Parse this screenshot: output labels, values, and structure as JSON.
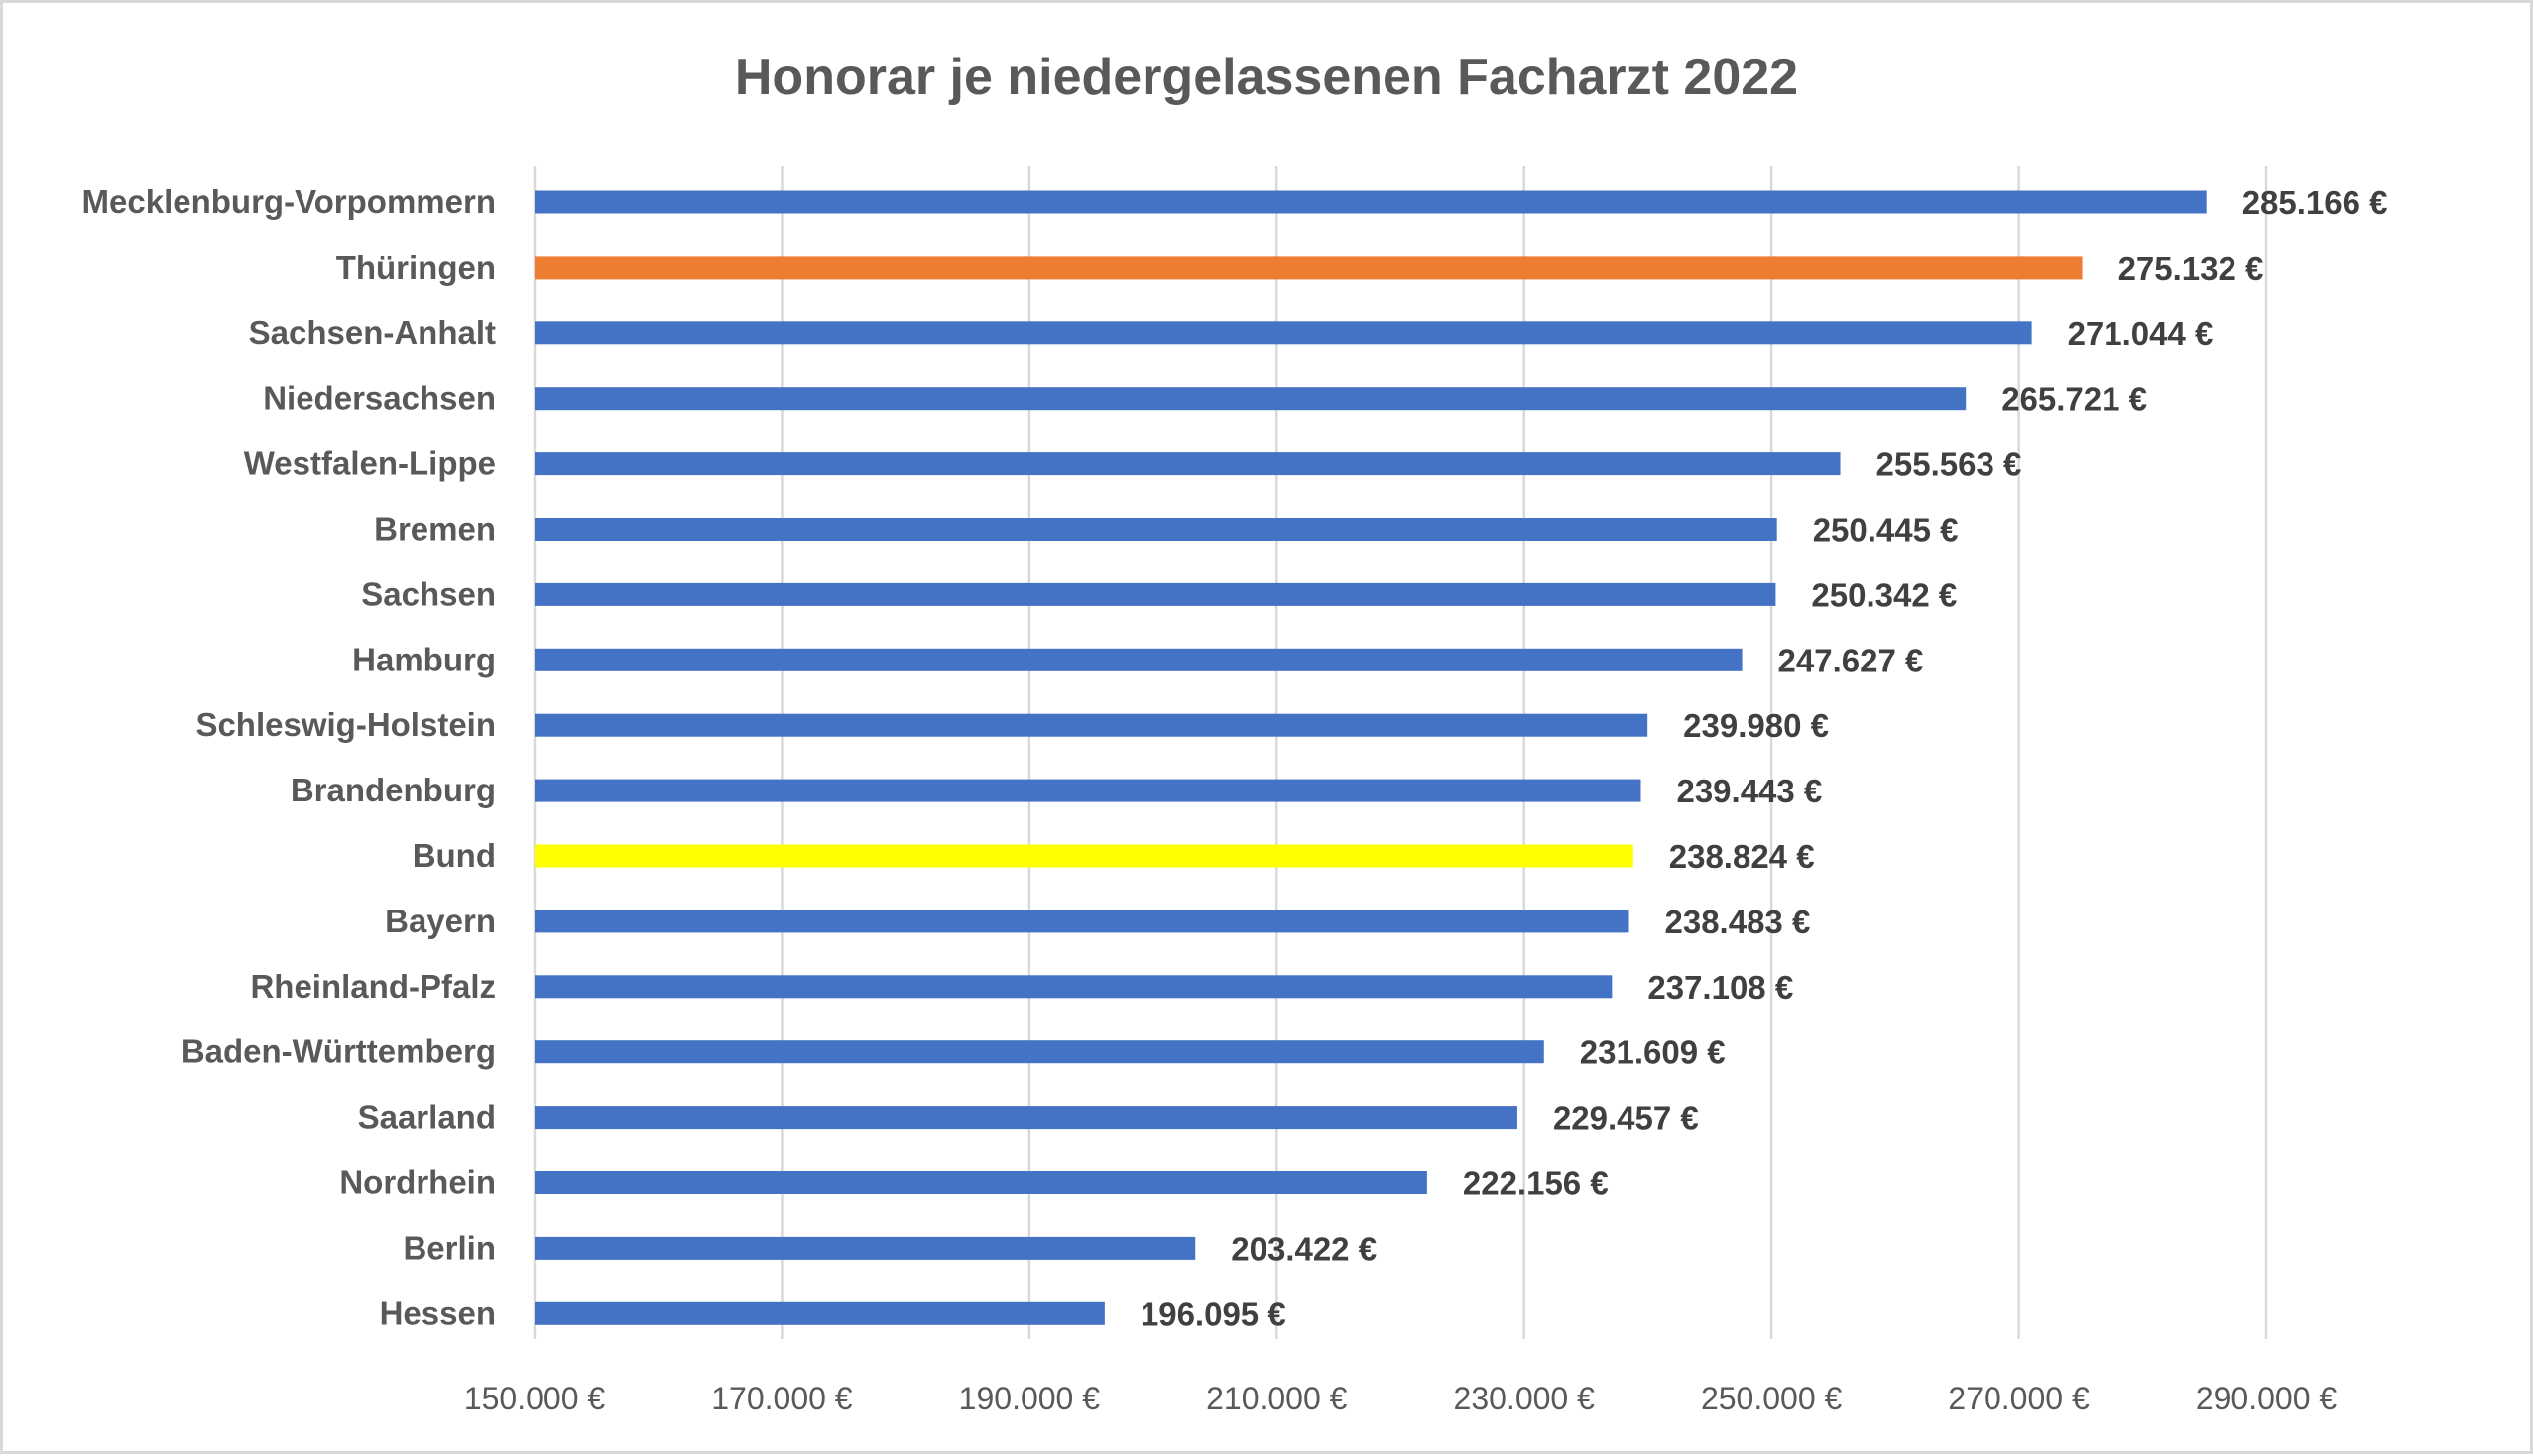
{
  "chart_data": {
    "type": "bar",
    "orientation": "horizontal",
    "title": "Honorar je niedergelassenen Facharzt 2022",
    "xlabel": "",
    "ylabel": "",
    "xlim": [
      150000,
      290000
    ],
    "grid": true,
    "legend": "none",
    "categories": [
      "Mecklenburg-Vorpommern",
      "Thüringen",
      "Sachsen-Anhalt",
      "Niedersachsen",
      "Westfalen-Lippe",
      "Bremen",
      "Sachsen",
      "Hamburg",
      "Schleswig-Holstein",
      "Brandenburg",
      "Bund",
      "Bayern",
      "Rheinland-Pfalz",
      "Baden-Württemberg",
      "Saarland",
      "Nordrhein",
      "Berlin",
      "Hessen"
    ],
    "values": [
      285166,
      275132,
      271044,
      265721,
      255563,
      250445,
      250342,
      247627,
      239980,
      239443,
      238824,
      238483,
      237108,
      231609,
      229457,
      222156,
      203422,
      196095
    ],
    "value_labels": [
      "285.166 €",
      "275.132 €",
      "271.044 €",
      "265.721 €",
      "255.563 €",
      "250.445 €",
      "250.342 €",
      "247.627 €",
      "239.980 €",
      "239.443 €",
      "238.824 €",
      "238.483 €",
      "237.108 €",
      "231.609 €",
      "229.457 €",
      "222.156 €",
      "203.422 €",
      "196.095 €"
    ],
    "colors": [
      "#4472c4",
      "#ed7d31",
      "#4472c4",
      "#4472c4",
      "#4472c4",
      "#4472c4",
      "#4472c4",
      "#4472c4",
      "#4472c4",
      "#4472c4",
      "#ffff00",
      "#4472c4",
      "#4472c4",
      "#4472c4",
      "#4472c4",
      "#4472c4",
      "#4472c4",
      "#4472c4"
    ],
    "ticks": [
      150000,
      170000,
      190000,
      210000,
      230000,
      250000,
      270000,
      290000
    ],
    "tick_labels": [
      "150.000 €",
      "170.000 €",
      "190.000 €",
      "210.000 €",
      "230.000 €",
      "250.000 €",
      "270.000 €",
      "290.000 €"
    ]
  }
}
